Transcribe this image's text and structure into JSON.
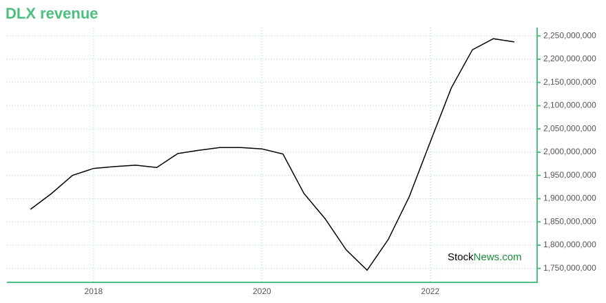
{
  "chart_data": {
    "type": "line",
    "title": "DLX revenue",
    "x": [
      2017.25,
      2017.5,
      2017.75,
      2018.0,
      2018.25,
      2018.5,
      2018.75,
      2019.0,
      2019.25,
      2019.5,
      2019.75,
      2020.0,
      2020.25,
      2020.5,
      2020.75,
      2021.0,
      2021.25,
      2021.5,
      2021.75,
      2022.0,
      2022.25,
      2022.5,
      2022.75,
      2023.0
    ],
    "values": [
      1877000000,
      1911000000,
      1950000000,
      1965000000,
      1969000000,
      1972000000,
      1967000000,
      1997000000,
      2004000000,
      2010000000,
      2010000000,
      2007000000,
      1996000000,
      1911000000,
      1857000000,
      1790000000,
      1746000000,
      1812000000,
      1904000000,
      2022000000,
      2138000000,
      2220000000,
      2244000000,
      2237000000
    ],
    "color": "#000000",
    "xlim": [
      2016.97,
      2023.27
    ],
    "xticks": [
      2018,
      2020,
      2022
    ],
    "ylim": [
      1720000000,
      2268000000
    ],
    "yticks": [
      {
        "value": 1750000000,
        "label": "1,750,000,000"
      },
      {
        "value": 1800000000,
        "label": "1,800,000,000"
      },
      {
        "value": 1850000000,
        "label": "1,850,000,000"
      },
      {
        "value": 1900000000,
        "label": "1,900,000,000"
      },
      {
        "value": 1950000000,
        "label": "1,950,000,000"
      },
      {
        "value": 2000000000,
        "label": "2,000,000,000"
      },
      {
        "value": 2050000000,
        "label": "2,050,000,000"
      },
      {
        "value": 2100000000,
        "label": "2,100,000,000"
      },
      {
        "value": 2150000000,
        "label": "2,150,000,000"
      },
      {
        "value": 2200000000,
        "label": "2,200,000,000"
      },
      {
        "value": 2250000000,
        "label": "2,250,000,000"
      }
    ],
    "grid": true,
    "watermark": {
      "prefix": "Stock",
      "suffix": "News.com"
    }
  }
}
